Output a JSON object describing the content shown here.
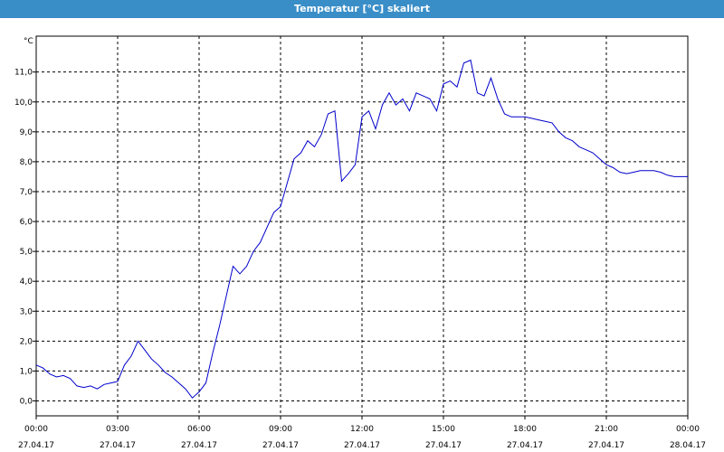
{
  "window": {
    "title": "Temperatur [°C] skaliert"
  },
  "chart_data": {
    "type": "line",
    "title": "Temperatur [°C] skaliert",
    "ylabel": "°C",
    "xlabel": "",
    "y_ticks": [
      "0,0",
      "1,0",
      "2,0",
      "3,0",
      "4,0",
      "5,0",
      "6,0",
      "7,0",
      "8,0",
      "9,0",
      "10,0",
      "11,0"
    ],
    "y_tick_values": [
      0,
      1,
      2,
      3,
      4,
      5,
      6,
      7,
      8,
      9,
      10,
      11
    ],
    "x_ticks": [
      {
        "time": "00:00",
        "date": "27.04.17"
      },
      {
        "time": "03:00",
        "date": "27.04.17"
      },
      {
        "time": "06:00",
        "date": "27.04.17"
      },
      {
        "time": "09:00",
        "date": "27.04.17"
      },
      {
        "time": "12:00",
        "date": "27.04.17"
      },
      {
        "time": "15:00",
        "date": "27.04.17"
      },
      {
        "time": "18:00",
        "date": "27.04.17"
      },
      {
        "time": "21:00",
        "date": "27.04.17"
      },
      {
        "time": "00:00",
        "date": "28.04.17"
      }
    ],
    "x_tick_hours": [
      0,
      3,
      6,
      9,
      12,
      15,
      18,
      21,
      24
    ],
    "xlim": [
      0,
      24
    ],
    "ylim": [
      -0.5,
      12.2
    ],
    "grid": true,
    "line_color": "#0000cc",
    "series": [
      {
        "x": [
          0.0,
          0.25,
          0.5,
          0.75,
          1.0,
          1.25,
          1.5,
          1.75,
          2.0,
          2.25,
          2.5,
          2.75,
          3.0,
          3.25,
          3.5,
          3.75,
          4.0,
          4.25,
          4.5,
          4.75,
          5.0,
          5.25,
          5.5,
          5.75,
          6.0,
          6.25,
          6.5,
          6.75,
          7.0,
          7.25,
          7.5,
          7.75,
          8.0,
          8.25,
          8.5,
          8.75,
          9.0,
          9.25,
          9.5,
          9.75,
          10.0,
          10.25,
          10.5,
          10.75,
          11.0,
          11.25,
          11.5,
          11.75,
          12.0,
          12.25,
          12.5,
          12.75,
          13.0,
          13.25,
          13.5,
          13.75,
          14.0,
          14.25,
          14.5,
          14.75,
          15.0,
          15.25,
          15.5,
          15.75,
          16.0,
          16.25,
          16.5,
          16.75,
          17.0,
          17.25,
          17.5,
          17.75,
          18.0,
          18.25,
          18.5,
          18.75,
          19.0,
          19.25,
          19.5,
          19.75,
          20.0,
          20.25,
          20.5,
          20.75,
          21.0,
          21.25,
          21.5,
          21.75,
          22.0,
          22.25,
          22.5,
          22.75,
          23.0,
          23.25,
          23.5,
          23.75,
          24.0
        ],
        "y": [
          1.2,
          1.1,
          0.9,
          0.8,
          0.85,
          0.75,
          0.5,
          0.45,
          0.5,
          0.4,
          0.55,
          0.6,
          0.65,
          1.2,
          1.5,
          2.0,
          1.7,
          1.4,
          1.2,
          0.95,
          0.8,
          0.6,
          0.4,
          0.1,
          0.3,
          0.6,
          1.6,
          2.5,
          3.5,
          4.5,
          4.25,
          4.5,
          5.0,
          5.3,
          5.8,
          6.3,
          6.5,
          7.3,
          8.1,
          8.3,
          8.7,
          8.5,
          8.9,
          9.6,
          9.7,
          7.35,
          7.6,
          7.9,
          9.5,
          9.7,
          9.1,
          9.9,
          10.3,
          9.9,
          10.1,
          9.7,
          10.3,
          10.2,
          10.1,
          9.7,
          10.6,
          10.7,
          10.5,
          11.3,
          11.4,
          10.3,
          10.2,
          10.8,
          10.1,
          9.6,
          9.5,
          9.5,
          9.5,
          9.45,
          9.4,
          9.35,
          9.3,
          9.0,
          8.8,
          8.7,
          8.5,
          8.4,
          8.3,
          8.1,
          7.9,
          7.8,
          7.65,
          7.6,
          7.65,
          7.7,
          7.7,
          7.7,
          7.65,
          7.55,
          7.5,
          7.5,
          7.5
        ]
      }
    ]
  }
}
